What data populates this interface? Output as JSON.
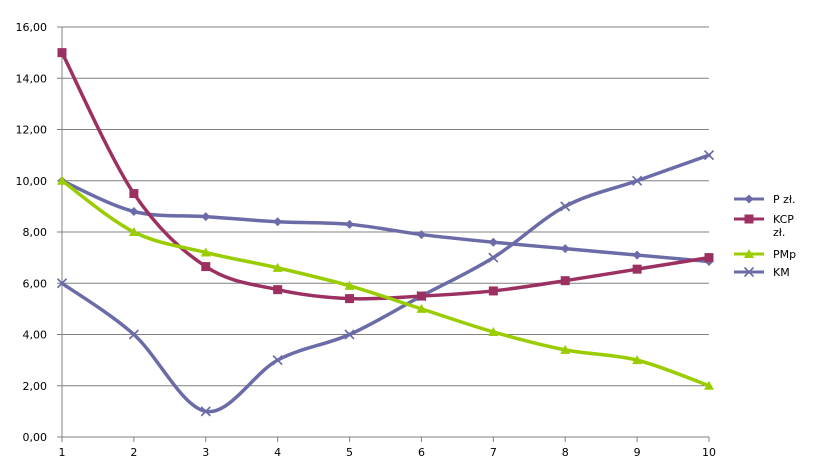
{
  "chart_data": {
    "type": "line",
    "x": [
      1,
      2,
      3,
      4,
      5,
      6,
      7,
      8,
      9,
      10
    ],
    "ylim": [
      0,
      16
    ],
    "y_ticks": [
      "0,00",
      "2,00",
      "4,00",
      "6,00",
      "8,00",
      "10,00",
      "12,00",
      "14,00",
      "16,00"
    ],
    "x_ticks": [
      "1",
      "2",
      "3",
      "4",
      "5",
      "6",
      "7",
      "8",
      "9",
      "10"
    ],
    "grid": "horizontal",
    "legend_position": "right",
    "series": [
      {
        "name": "P zł.",
        "color": "#6b6ba8",
        "marker": "diamond",
        "values": [
          10.0,
          8.8,
          8.6,
          8.4,
          8.3,
          7.9,
          7.6,
          7.35,
          7.1,
          6.85
        ]
      },
      {
        "name": "KCP zł.",
        "color": "#9c3060",
        "marker": "square",
        "values": [
          15.0,
          9.5,
          6.65,
          5.75,
          5.4,
          5.5,
          5.7,
          6.1,
          6.55,
          7.0
        ]
      },
      {
        "name": "PMp",
        "color": "#9acd00",
        "marker": "triangle",
        "values": [
          10.0,
          8.0,
          7.2,
          6.6,
          5.9,
          5.0,
          4.1,
          3.4,
          3.0,
          2.0
        ]
      },
      {
        "name": "KM",
        "color": "#6b6ba8",
        "marker": "x",
        "values": [
          6.0,
          4.0,
          1.0,
          3.0,
          4.0,
          5.5,
          7.0,
          9.0,
          10.0,
          11.0
        ]
      }
    ]
  }
}
